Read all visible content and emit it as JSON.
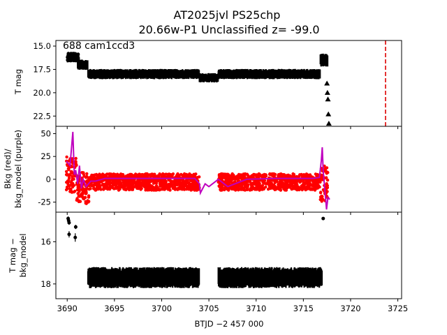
{
  "chart_data": {
    "type": "scatter",
    "title_line1": "AT2025jvl  PS25chp",
    "title_line2": "20.66w-P1 Unclassified z= -99.0",
    "xlabel": "BTJD −2 457 000",
    "xlim": [
      3688.8,
      3725.4
    ],
    "xticks": [
      3690,
      3695,
      3700,
      3705,
      3710,
      3715,
      3720,
      3725
    ],
    "panels": [
      {
        "name": "lightcurve",
        "ylabel": "T mag",
        "ylim": [
          23.6,
          14.4
        ],
        "yticks": [
          15.0,
          17.5,
          20.0,
          22.5
        ],
        "annotation": "688 cam1ccd3",
        "segments": [
          {
            "x": [
              3690.0,
              3691.1
            ],
            "center": 16.3,
            "spread": 0.9
          },
          {
            "x": [
              3691.1,
              3692.2
            ],
            "center": 17.0,
            "spread": 1.1
          },
          {
            "x": [
              3692.2,
              3704.0
            ],
            "center": 18.0,
            "spread": 1.1
          },
          {
            "x": [
              3704.0,
              3706.0
            ],
            "center": 18.4,
            "spread": 1.0
          },
          {
            "x": [
              3706.0,
              3716.8
            ],
            "center": 18.0,
            "spread": 1.1
          },
          {
            "x": [
              3716.8,
              3717.6
            ],
            "center": 16.5,
            "spread": 1.4
          }
        ],
        "upper_limits_x": [
          3717.5,
          3717.55,
          3717.6,
          3717.65,
          3717.7
        ],
        "upper_limits_y": [
          19.0,
          20.0,
          20.7,
          22.3,
          23.3
        ],
        "vline_x": 3723.7,
        "vline_color": "#dd0000"
      },
      {
        "name": "background",
        "ylabel_1": "Bkg (red)/",
        "ylabel_2": "bkg_model (purple)",
        "ylim": [
          -36,
          58
        ],
        "yticks": [
          -25,
          0,
          25,
          50
        ],
        "bkg_color": "#ff0000",
        "model_color": "#bf00bf",
        "model_x": [
          3689.9,
          3690.3,
          3690.6,
          3690.75,
          3690.9,
          3691.1,
          3691.3,
          3691.5,
          3691.7,
          3692.0,
          3692.5,
          3693.0,
          3694.0,
          3695.0,
          3700.0,
          3703.5,
          3704.0,
          3704.1,
          3704.6,
          3705.0,
          3706.0,
          3707.0,
          3708.0,
          3709.0,
          3712.0,
          3716.0,
          3716.7,
          3716.9,
          3717.0,
          3717.1,
          3717.3,
          3717.45,
          3717.6,
          3717.8
        ],
        "model_y": [
          20,
          15,
          52,
          5,
          10,
          -5,
          15,
          -10,
          0,
          -8,
          -2,
          -2,
          1,
          1,
          1,
          1,
          -5,
          -15,
          -5,
          -8,
          0,
          -8,
          -4,
          0,
          1,
          1,
          2,
          20,
          35,
          10,
          -15,
          -33,
          -20,
          -22
        ]
      },
      {
        "name": "corrected",
        "ylabel_1": "T mag −",
        "ylabel_2": "bkg_model",
        "ylim": [
          18.7,
          14.6
        ],
        "yticks": [
          16,
          18
        ],
        "early_x": [
          3690.1,
          3690.2,
          3690.15,
          3690.2,
          3690.9,
          3690.85
        ],
        "early_y": [
          14.9,
          15.1,
          15.0,
          15.65,
          15.3,
          15.8
        ],
        "early_err": [
          0.1,
          0.1,
          0.1,
          0.15,
          0.1,
          0.2
        ],
        "outlier_x": 3717.1,
        "outlier_y": 14.9,
        "band_segments": [
          {
            "x": [
              3692.2,
              3704.0
            ],
            "center": 17.7,
            "spread": 1.0
          },
          {
            "x": [
              3706.0,
              3717.0
            ],
            "center": 17.7,
            "spread": 1.0
          }
        ]
      }
    ]
  }
}
